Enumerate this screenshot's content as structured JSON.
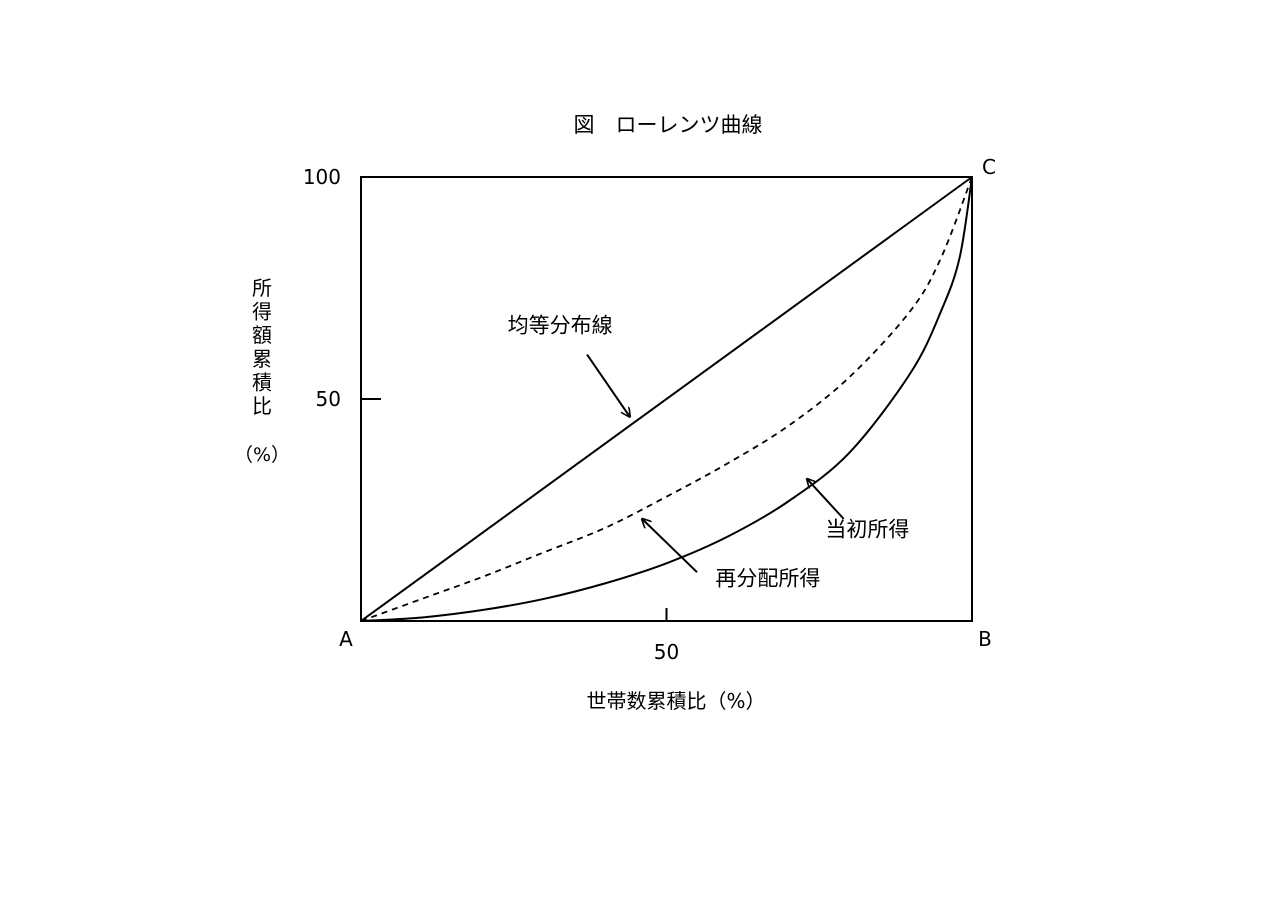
{
  "chart_data": {
    "type": "line",
    "title": "図　ローレンツ曲線",
    "xlabel": "世帯数累積比（%）",
    "ylabel_lines": [
      "所",
      "得",
      "額",
      "累",
      "積",
      "比"
    ],
    "ylabel_unit": "（%）",
    "xlim": [
      0,
      100
    ],
    "ylim": [
      0,
      100
    ],
    "x_ticks": [
      {
        "value": 50,
        "label": "50"
      }
    ],
    "y_ticks": [
      {
        "value": 50,
        "label": "50"
      },
      {
        "value": 100,
        "label": "100"
      }
    ],
    "grid": false,
    "corner_labels": {
      "a": "A",
      "b": "B",
      "c": "C"
    },
    "series": [
      {
        "style": "solid",
        "x": [
          0,
          100
        ],
        "y": [
          0,
          100
        ]
      },
      {
        "style": "dashed",
        "x": [
          0,
          10,
          20,
          30,
          40,
          50,
          60,
          70,
          80,
          90,
          95,
          100
        ],
        "y": [
          0,
          5,
          10,
          15.5,
          21,
          28,
          35.5,
          44,
          55,
          70,
          82,
          100
        ]
      },
      {
        "style": "solid",
        "x": [
          0,
          10,
          20,
          30,
          40,
          50,
          60,
          70,
          80,
          90,
          95,
          98,
          100
        ],
        "y": [
          0,
          0.8,
          2.5,
          5,
          8.5,
          13,
          19,
          27,
          38,
          56,
          70,
          82,
          100
        ]
      }
    ],
    "annotations": [
      {
        "text": "均等分布線",
        "series_index": 0,
        "text_at": [
          24,
          65
        ],
        "arrow_from": [
          37,
          60
        ],
        "arrow_to": [
          44,
          46
        ]
      },
      {
        "text": "再分配所得",
        "series_index": 1,
        "text_at": [
          58,
          8
        ],
        "arrow_from": [
          55,
          11
        ],
        "arrow_to": [
          46,
          23
        ]
      },
      {
        "text": "当初所得",
        "series_index": 2,
        "text_at": [
          76,
          19
        ],
        "arrow_from": [
          79,
          23
        ],
        "arrow_to": [
          73,
          32
        ]
      }
    ]
  }
}
